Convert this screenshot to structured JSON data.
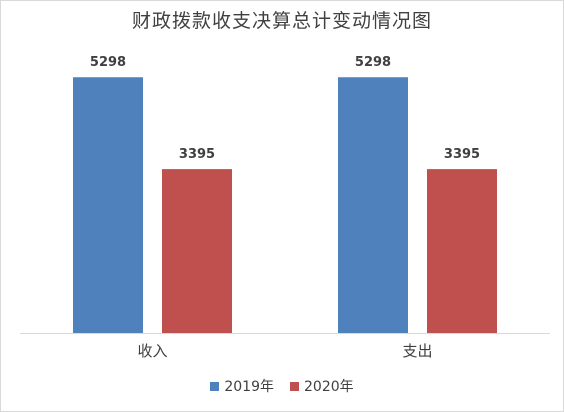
{
  "chart_data": {
    "type": "bar",
    "title": "财政拨款收支决算总计变动情况图",
    "categories": [
      "收入",
      "支出"
    ],
    "series": [
      {
        "name": "2019年",
        "color": "#4f81bd",
        "values": [
          5298,
          5298
        ]
      },
      {
        "name": "2020年",
        "color": "#c0504d",
        "values": [
          3395,
          3395
        ]
      }
    ],
    "ylim": [
      0,
      5800
    ],
    "xlabel": "",
    "ylabel": "",
    "grid": false,
    "legend_position": "bottom",
    "data_labels": true
  }
}
